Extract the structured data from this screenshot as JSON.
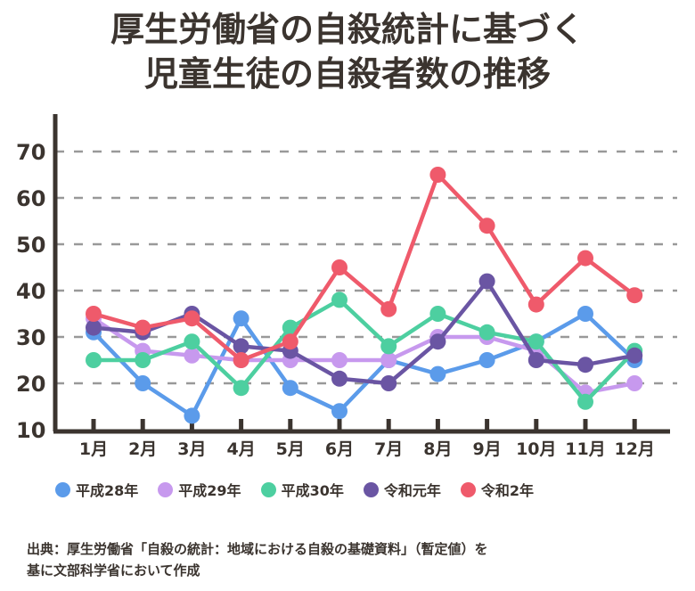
{
  "chart_data": {
    "type": "line",
    "title_line1": "厚生労働省の自殺統計に基づく",
    "title_line2": "児童生徒の自殺者数の推移",
    "categories": [
      "1月",
      "2月",
      "3月",
      "4月",
      "5月",
      "6月",
      "7月",
      "8月",
      "9月",
      "10月",
      "11月",
      "12月"
    ],
    "yticks": [
      "10",
      "20",
      "30",
      "40",
      "50",
      "60",
      "70"
    ],
    "ylim": [
      10,
      70
    ],
    "grid": true,
    "legend_position": "bottom",
    "series": [
      {
        "name": "平成28年",
        "color": "#5b9bea",
        "values": [
          31,
          20,
          13,
          34,
          19,
          14,
          25,
          22,
          25,
          29,
          35,
          25
        ]
      },
      {
        "name": "平成29年",
        "color": "#c799ee",
        "values": [
          34,
          27,
          26,
          25,
          25,
          25,
          25,
          30,
          30,
          27,
          18,
          20
        ]
      },
      {
        "name": "平成30年",
        "color": "#4dcfa0",
        "values": [
          25,
          25,
          29,
          19,
          32,
          38,
          28,
          35,
          31,
          29,
          16,
          27
        ]
      },
      {
        "name": "令和元年",
        "color": "#6a55a3",
        "values": [
          32,
          31,
          35,
          28,
          27,
          21,
          20,
          29,
          42,
          25,
          24,
          26
        ]
      },
      {
        "name": "令和2年",
        "color": "#ef5a6b",
        "values": [
          35,
          32,
          34,
          25,
          29,
          45,
          36,
          65,
          54,
          37,
          47,
          39
        ]
      }
    ],
    "source_line1": "出典：厚生労働省「自殺の統計：地域における自殺の基礎資料」（暫定値）を",
    "source_line2": "基に文部科学省において作成"
  }
}
